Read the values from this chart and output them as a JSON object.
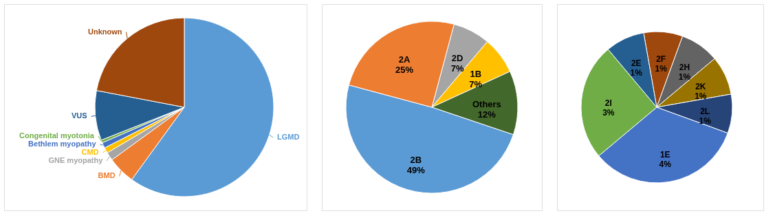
{
  "chart_data": [
    {
      "type": "pie",
      "categories": [
        "LGMD",
        "BMD",
        "GNE myopathy",
        "CMD",
        "Bethlem myopathy",
        "Congenital myotonia",
        "VUS",
        "Unknown"
      ],
      "values": [
        60,
        5,
        1.5,
        1,
        1,
        0.5,
        9,
        22
      ],
      "colors": [
        "#5b9bd5",
        "#ed7d31",
        "#a5a5a5",
        "#ffc000",
        "#4472c4",
        "#70ad47",
        "#255e91",
        "#9e480e"
      ]
    },
    {
      "type": "pie",
      "categories": [
        "2D",
        "1B",
        "Others",
        "2B",
        "2A"
      ],
      "values": [
        7,
        7,
        12,
        49,
        25
      ],
      "colors": [
        "#a5a5a5",
        "#ffc000",
        "#43682b",
        "#5b9bd5",
        "#ed7d31"
      ],
      "value_labels": [
        "7%",
        "7%",
        "12%",
        "49%",
        "25%"
      ]
    },
    {
      "type": "pie",
      "categories": [
        "2F",
        "2H",
        "2K",
        "2L",
        "1E",
        "2I",
        "2E"
      ],
      "values": [
        1,
        1,
        1,
        1,
        4,
        3,
        1
      ],
      "colors": [
        "#9e480e",
        "#636363",
        "#997300",
        "#264478",
        "#4472c4",
        "#70ad47",
        "#255e91"
      ],
      "value_labels": [
        "1%",
        "1%",
        "1%",
        "1%",
        "4%",
        "3%",
        "1%"
      ]
    }
  ]
}
